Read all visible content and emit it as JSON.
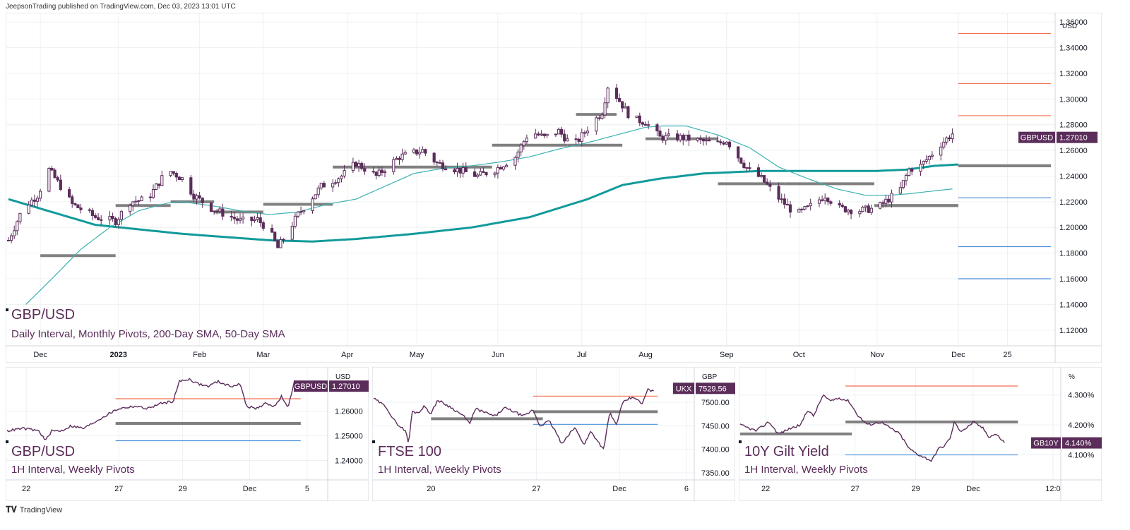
{
  "header": {
    "published": "JeepsonTrading published on TradingView.com, Dec 03, 2023 13:01 UTC"
  },
  "footer": {
    "brand": "TradingView",
    "logo": "tradingview-logo-icon"
  },
  "colors": {
    "candle": "#5b2d5a",
    "sma200": "#129a9a",
    "sma50": "#3bb1b1",
    "pivot": "#808080",
    "resistance": "#f07051",
    "support": "#4a90d9",
    "tag": "#5b2d5a",
    "grid": "#eef0f3"
  },
  "chart_data": [
    {
      "id": "main",
      "type": "candlestick",
      "title": "GBP/USD",
      "subtitle": "Daily Interval, Monthly Pivots, 200-Day SMA, 50-Day SMA",
      "currency": "USD",
      "ylim": [
        1.11,
        1.365
      ],
      "yticks": [
        "1.36000",
        "1.34000",
        "1.32000",
        "1.30000",
        "1.28000",
        "1.26000",
        "1.24000",
        "1.22000",
        "1.20000",
        "1.18000",
        "1.16000",
        "1.14000",
        "1.12000"
      ],
      "ytick_values": [
        1.36,
        1.34,
        1.32,
        1.3,
        1.28,
        1.26,
        1.24,
        1.22,
        1.2,
        1.18,
        1.16,
        1.14,
        1.12
      ],
      "xlim": [
        0,
        360
      ],
      "xticks": [
        "Dec",
        "2023",
        "Feb",
        "Mar",
        "Apr",
        "May",
        "Jun",
        "Jul",
        "Aug",
        "Sep",
        "Oct",
        "Nov",
        "Dec",
        "25"
      ],
      "xtick_pos": [
        11,
        38,
        66,
        88,
        117,
        141,
        169,
        198,
        220,
        248,
        273,
        300,
        328,
        345
      ],
      "xtick_bold": [
        false,
        true,
        false,
        false,
        false,
        false,
        false,
        false,
        false,
        false,
        false,
        false,
        false,
        false
      ],
      "last_label": "GBPUSD",
      "last_value": "1.27010",
      "last_numeric": 1.2701,
      "closes_anchor": [
        [
          0,
          1.19
        ],
        [
          5,
          1.215
        ],
        [
          10,
          1.225
        ],
        [
          14,
          1.245
        ],
        [
          18,
          1.232
        ],
        [
          22,
          1.218
        ],
        [
          30,
          1.208
        ],
        [
          37,
          1.205
        ],
        [
          42,
          1.22
        ],
        [
          48,
          1.222
        ],
        [
          55,
          1.245
        ],
        [
          60,
          1.238
        ],
        [
          64,
          1.225
        ],
        [
          70,
          1.215
        ],
        [
          80,
          1.205
        ],
        [
          86,
          1.206
        ],
        [
          90,
          1.198
        ],
        [
          93,
          1.184
        ],
        [
          100,
          1.21
        ],
        [
          108,
          1.232
        ],
        [
          115,
          1.24
        ],
        [
          120,
          1.25
        ],
        [
          127,
          1.24
        ],
        [
          135,
          1.255
        ],
        [
          143,
          1.26
        ],
        [
          148,
          1.25
        ],
        [
          155,
          1.245
        ],
        [
          162,
          1.24
        ],
        [
          168,
          1.245
        ],
        [
          175,
          1.255
        ],
        [
          180,
          1.275
        ],
        [
          185,
          1.27
        ],
        [
          190,
          1.275
        ],
        [
          195,
          1.263
        ],
        [
          200,
          1.277
        ],
        [
          205,
          1.29
        ],
        [
          207,
          1.31
        ],
        [
          210,
          1.302
        ],
        [
          215,
          1.285
        ],
        [
          220,
          1.282
        ],
        [
          225,
          1.27
        ],
        [
          232,
          1.27
        ],
        [
          240,
          1.267
        ],
        [
          245,
          1.265
        ],
        [
          248,
          1.268
        ],
        [
          252,
          1.255
        ],
        [
          255,
          1.246
        ],
        [
          260,
          1.238
        ],
        [
          265,
          1.225
        ],
        [
          272,
          1.21
        ],
        [
          276,
          1.215
        ],
        [
          282,
          1.225
        ],
        [
          287,
          1.215
        ],
        [
          293,
          1.213
        ],
        [
          300,
          1.215
        ],
        [
          305,
          1.224
        ],
        [
          308,
          1.23
        ],
        [
          311,
          1.245
        ],
        [
          315,
          1.248
        ],
        [
          318,
          1.255
        ],
        [
          322,
          1.265
        ],
        [
          326,
          1.273
        ],
        [
          327,
          1.2701
        ]
      ],
      "sma200_anchor": [
        [
          0,
          1.222
        ],
        [
          30,
          1.202
        ],
        [
          60,
          1.195
        ],
        [
          90,
          1.19
        ],
        [
          105,
          1.189
        ],
        [
          120,
          1.191
        ],
        [
          140,
          1.195
        ],
        [
          160,
          1.2
        ],
        [
          180,
          1.208
        ],
        [
          200,
          1.222
        ],
        [
          212,
          1.233
        ],
        [
          225,
          1.238
        ],
        [
          240,
          1.242
        ],
        [
          260,
          1.244
        ],
        [
          280,
          1.244
        ],
        [
          300,
          1.244
        ],
        [
          310,
          1.245
        ],
        [
          320,
          1.248
        ],
        [
          328,
          1.249
        ]
      ],
      "sma50_anchor": [
        [
          6,
          1.14
        ],
        [
          15,
          1.16
        ],
        [
          25,
          1.183
        ],
        [
          35,
          1.2
        ],
        [
          45,
          1.213
        ],
        [
          55,
          1.219
        ],
        [
          60,
          1.22
        ],
        [
          70,
          1.217
        ],
        [
          80,
          1.213
        ],
        [
          90,
          1.21
        ],
        [
          100,
          1.212
        ],
        [
          110,
          1.218
        ],
        [
          120,
          1.222
        ],
        [
          130,
          1.232
        ],
        [
          140,
          1.242
        ],
        [
          150,
          1.246
        ],
        [
          160,
          1.248
        ],
        [
          170,
          1.251
        ],
        [
          180,
          1.255
        ],
        [
          190,
          1.261
        ],
        [
          200,
          1.266
        ],
        [
          210,
          1.272
        ],
        [
          220,
          1.278
        ],
        [
          226,
          1.279
        ],
        [
          234,
          1.279
        ],
        [
          245,
          1.272
        ],
        [
          256,
          1.262
        ],
        [
          266,
          1.247
        ],
        [
          276,
          1.238
        ],
        [
          286,
          1.23
        ],
        [
          296,
          1.225
        ],
        [
          304,
          1.225
        ],
        [
          310,
          1.226
        ],
        [
          318,
          1.228
        ],
        [
          326,
          1.23
        ]
      ],
      "pivots": [
        [
          11,
          37,
          1.178
        ],
        [
          37,
          56,
          1.217
        ],
        [
          56,
          71,
          1.22
        ],
        [
          71,
          88,
          1.212
        ],
        [
          88,
          112,
          1.218
        ],
        [
          112,
          141,
          1.247
        ],
        [
          141,
          167,
          1.247
        ],
        [
          167,
          193,
          1.264
        ],
        [
          193,
          212,
          1.264
        ],
        [
          196,
          210,
          1.288
        ],
        [
          220,
          245,
          1.269
        ],
        [
          245,
          268,
          1.234
        ],
        [
          268,
          299,
          1.234
        ],
        [
          299,
          328,
          1.217
        ],
        [
          303,
          328,
          1.217
        ],
        [
          328,
          360,
          1.248
        ]
      ],
      "projections": [
        {
          "y": 1.351,
          "color": "resistance"
        },
        {
          "y": 1.312,
          "color": "resistance"
        },
        {
          "y": 1.287,
          "color": "resistance"
        },
        {
          "y": 1.248,
          "color": "pivot"
        },
        {
          "y": 1.223,
          "color": "support"
        },
        {
          "y": 1.185,
          "color": "support"
        },
        {
          "y": 1.16,
          "color": "support"
        }
      ]
    },
    {
      "id": "gbpusd-1h",
      "type": "line",
      "title": "GBP/USD",
      "subtitle": "1H Interval, Weekly Pivots",
      "currency": "USD",
      "ylim": [
        1.235,
        1.275
      ],
      "yticks": [
        "1.26000",
        "1.25000",
        "1.24000"
      ],
      "ytick_values": [
        1.26,
        1.25,
        1.24
      ],
      "xlim": [
        0,
        100
      ],
      "xticks": [
        "22",
        "27",
        "29",
        "Dec",
        "5"
      ],
      "xtick_pos": [
        6,
        35,
        55,
        76,
        94
      ],
      "last_label": "GBPUSD",
      "last_value": "1.27010",
      "last_numeric": 1.2701,
      "anchor": [
        [
          0,
          1.252
        ],
        [
          5,
          1.253
        ],
        [
          10,
          1.252
        ],
        [
          12,
          1.248
        ],
        [
          14,
          1.252
        ],
        [
          17,
          1.252
        ],
        [
          20,
          1.254
        ],
        [
          24,
          1.253
        ],
        [
          28,
          1.256
        ],
        [
          32,
          1.259
        ],
        [
          35,
          1.261
        ],
        [
          40,
          1.262
        ],
        [
          44,
          1.261
        ],
        [
          48,
          1.263
        ],
        [
          52,
          1.264
        ],
        [
          54,
          1.272
        ],
        [
          57,
          1.273
        ],
        [
          60,
          1.271
        ],
        [
          63,
          1.27
        ],
        [
          66,
          1.272
        ],
        [
          70,
          1.27
        ],
        [
          73,
          1.271
        ],
        [
          75,
          1.262
        ],
        [
          78,
          1.261
        ],
        [
          81,
          1.263
        ],
        [
          84,
          1.262
        ],
        [
          86,
          1.266
        ],
        [
          88,
          1.261
        ],
        [
          90,
          1.272
        ],
        [
          92,
          1.271
        ]
      ],
      "levels": [
        {
          "from": 34,
          "to": 92,
          "y": 1.265,
          "color": "resistance"
        },
        {
          "from": 34,
          "to": 92,
          "y": 1.255,
          "color": "pivot"
        },
        {
          "from": 34,
          "to": 92,
          "y": 1.248,
          "color": "support"
        }
      ]
    },
    {
      "id": "ftse100-1h",
      "type": "line",
      "title": "FTSE 100",
      "subtitle": "1H Interval, Weekly Pivots",
      "currency": "GBP",
      "ylim": [
        7350,
        7560
      ],
      "yticks": [
        "7500.00",
        "7450.00",
        "7400.00",
        "7350.00"
      ],
      "ytick_values": [
        7500,
        7450,
        7400,
        7350
      ],
      "xlim": [
        0,
        100
      ],
      "xticks": [
        "20",
        "27",
        "Dec",
        "6"
      ],
      "xtick_pos": [
        18,
        51,
        77,
        98
      ],
      "last_label": "UKX",
      "last_value": "7529.56",
      "last_numeric": 7529.56,
      "anchor": [
        [
          0,
          7508
        ],
        [
          4,
          7490
        ],
        [
          6,
          7465
        ],
        [
          8,
          7450
        ],
        [
          10,
          7440
        ],
        [
          11,
          7410
        ],
        [
          12,
          7480
        ],
        [
          14,
          7478
        ],
        [
          16,
          7492
        ],
        [
          18,
          7475
        ],
        [
          20,
          7505
        ],
        [
          24,
          7490
        ],
        [
          28,
          7472
        ],
        [
          30,
          7455
        ],
        [
          32,
          7486
        ],
        [
          35,
          7478
        ],
        [
          38,
          7470
        ],
        [
          41,
          7488
        ],
        [
          44,
          7480
        ],
        [
          47,
          7470
        ],
        [
          50,
          7484
        ],
        [
          52,
          7450
        ],
        [
          55,
          7460
        ],
        [
          57,
          7438
        ],
        [
          59,
          7410
        ],
        [
          61,
          7430
        ],
        [
          63,
          7446
        ],
        [
          65,
          7422
        ],
        [
          66,
          7410
        ],
        [
          68,
          7438
        ],
        [
          70,
          7420
        ],
        [
          72,
          7400
        ],
        [
          74,
          7478
        ],
        [
          76,
          7452
        ],
        [
          78,
          7498
        ],
        [
          80,
          7508
        ],
        [
          82,
          7510
        ],
        [
          84,
          7495
        ],
        [
          86,
          7528
        ],
        [
          88,
          7521
        ]
      ],
      "levels": [
        {
          "from": 50,
          "to": 89,
          "y": 7513,
          "color": "resistance"
        },
        {
          "from": 50,
          "to": 89,
          "y": 7480,
          "color": "pivot"
        },
        {
          "from": 18,
          "to": 53,
          "y": 7465,
          "color": "pivot"
        },
        {
          "from": 50,
          "to": 89,
          "y": 7453,
          "color": "support"
        }
      ]
    },
    {
      "id": "gilt-1h",
      "type": "line",
      "title": "10Y Gilt Yield",
      "subtitle": "1H Interval, Weekly Pivots",
      "currency": "%",
      "ylim": [
        4.04,
        4.37
      ],
      "yticks": [
        "4.300%",
        "4.200%",
        "4.100%"
      ],
      "ytick_values": [
        4.3,
        4.2,
        4.1
      ],
      "xlim": [
        0,
        100
      ],
      "xticks": [
        "22",
        "27",
        "29",
        "Dec",
        "12:0"
      ],
      "xtick_pos": [
        8,
        36,
        55,
        73,
        98
      ],
      "last_label": "GB10Y",
      "last_value": "4.140%",
      "last_numeric": 4.14,
      "anchor": [
        [
          0,
          4.2
        ],
        [
          5,
          4.18
        ],
        [
          9,
          4.21
        ],
        [
          12,
          4.17
        ],
        [
          16,
          4.19
        ],
        [
          19,
          4.2
        ],
        [
          21,
          4.25
        ],
        [
          23,
          4.23
        ],
        [
          26,
          4.3
        ],
        [
          28,
          4.28
        ],
        [
          31,
          4.29
        ],
        [
          34,
          4.28
        ],
        [
          37,
          4.23
        ],
        [
          40,
          4.2
        ],
        [
          44,
          4.21
        ],
        [
          47,
          4.19
        ],
        [
          50,
          4.17
        ],
        [
          53,
          4.12
        ],
        [
          56,
          4.1
        ],
        [
          58,
          4.09
        ],
        [
          60,
          4.08
        ],
        [
          62,
          4.12
        ],
        [
          64,
          4.13
        ],
        [
          66,
          4.16
        ],
        [
          67,
          4.21
        ],
        [
          69,
          4.18
        ],
        [
          71,
          4.19
        ],
        [
          73,
          4.21
        ],
        [
          76,
          4.19
        ],
        [
          78,
          4.16
        ],
        [
          80,
          4.17
        ],
        [
          82,
          4.15
        ],
        [
          83,
          4.14
        ]
      ],
      "levels": [
        {
          "from": 33,
          "to": 87,
          "y": 4.33,
          "color": "resistance"
        },
        {
          "from": 33,
          "to": 87,
          "y": 4.21,
          "color": "pivot"
        },
        {
          "from": 0,
          "to": 35,
          "y": 4.17,
          "color": "pivot"
        },
        {
          "from": 33,
          "to": 87,
          "y": 4.1,
          "color": "support"
        }
      ]
    }
  ]
}
